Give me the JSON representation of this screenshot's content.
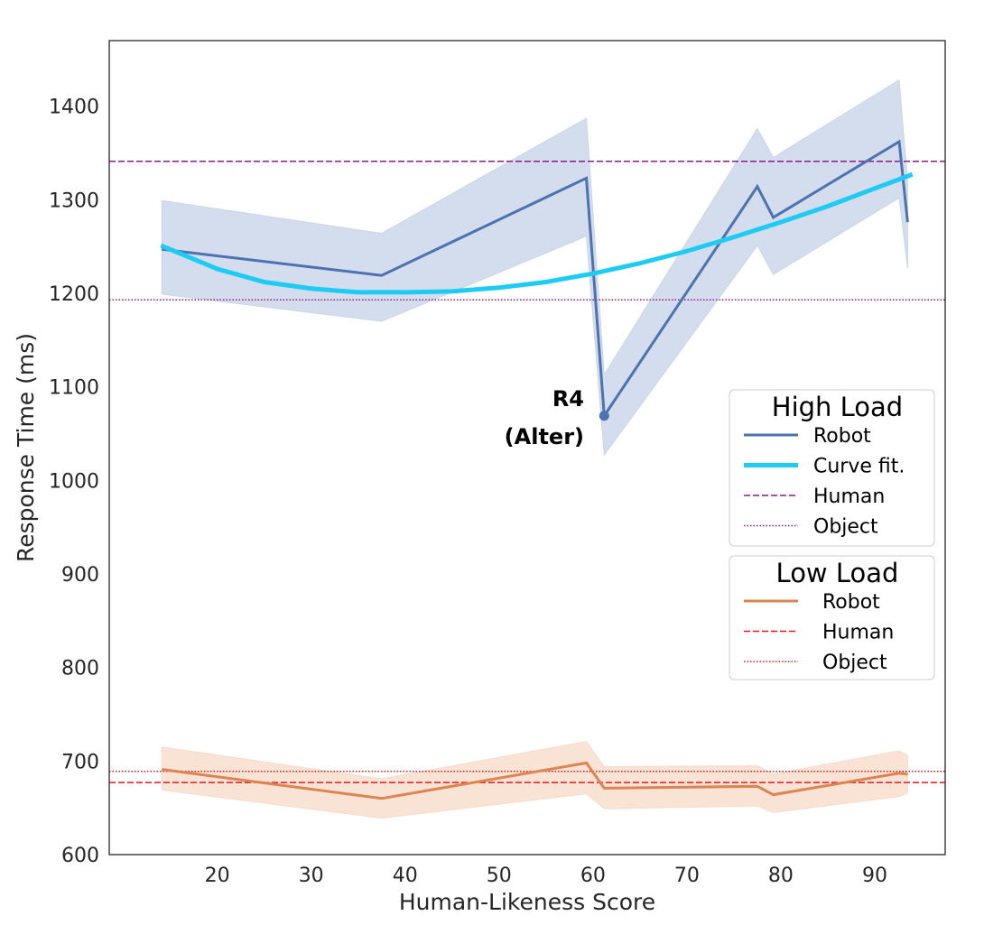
{
  "chart_data": {
    "type": "line",
    "xlabel": "Human-Likeness Score",
    "ylabel": "Response Time (ms)",
    "xlim": [
      8.5,
      97.5
    ],
    "ylim": [
      600,
      1470
    ],
    "xticks": [
      20,
      30,
      40,
      50,
      60,
      70,
      80,
      90
    ],
    "yticks": [
      600,
      700,
      800,
      900,
      1000,
      1100,
      1200,
      1300,
      1400
    ],
    "grid": false,
    "colors": {
      "high_robot": "#4c72b0",
      "high_band": "#c9d5e8",
      "curve_fit": "#1ecbf2",
      "high_ref": "#8b1a8b",
      "low_robot": "#dd8452",
      "low_band": "#f6dccb",
      "low_ref": "#e8141c"
    },
    "high_load": {
      "robot": {
        "name": "Robot",
        "x": [
          14.1,
          37.5,
          59.3,
          61.2,
          77.5,
          79.2,
          92.6,
          93.5
        ],
        "y": [
          1247,
          1219,
          1323,
          1069,
          1314,
          1281,
          1362,
          1276
        ],
        "ci_lower": [
          1199,
          1170,
          1261,
          1027,
          1251,
          1220,
          1302,
          1227
        ],
        "ci_upper": [
          1299,
          1264,
          1387,
          1113,
          1376,
          1345,
          1428,
          1319
        ]
      },
      "curve_fit": {
        "name": "Curve fit.",
        "x": [
          14,
          20,
          25,
          30,
          35,
          40,
          45,
          50,
          55,
          60,
          65,
          70,
          75,
          80,
          85,
          90,
          94
        ],
        "y": [
          1251,
          1226,
          1212,
          1205,
          1201,
          1201,
          1202,
          1206,
          1212,
          1221,
          1232,
          1245,
          1260,
          1276,
          1293,
          1312,
          1327
        ]
      },
      "human": {
        "name": "Human",
        "value": 1341
      },
      "object": {
        "name": "Object",
        "value": 1193
      }
    },
    "low_load": {
      "robot": {
        "name": "Robot",
        "x": [
          14.1,
          37.5,
          59.3,
          61.2,
          77.5,
          79.2,
          92.6,
          93.5
        ],
        "y": [
          691,
          660,
          698,
          671,
          673,
          664,
          687,
          686
        ],
        "ci_lower": [
          669,
          639,
          665,
          649,
          652,
          645,
          662,
          666
        ],
        "ci_upper": [
          715,
          681,
          721,
          694,
          695,
          686,
          711,
          706
        ]
      },
      "human": {
        "name": "Human",
        "value": 677
      },
      "object": {
        "name": "Object",
        "value": 689
      }
    },
    "annotation": {
      "label_line1": "R4",
      "label_line2": "(Alter)",
      "x": 61.2,
      "y": 1069
    },
    "legends": [
      {
        "title": "High Load",
        "placement": "center-right",
        "entries": [
          {
            "label": "Robot",
            "style": "solid",
            "color_key": "high_robot"
          },
          {
            "label": "Curve fit.",
            "style": "solid-thick",
            "color_key": "curve_fit"
          },
          {
            "label": "Human",
            "style": "dashed",
            "color_key": "high_ref"
          },
          {
            "label": "Object",
            "style": "dotted",
            "color_key": "high_ref"
          }
        ]
      },
      {
        "title": "Low Load",
        "placement": "center-right",
        "entries": [
          {
            "label": "Robot",
            "style": "solid",
            "color_key": "low_robot"
          },
          {
            "label": "Human",
            "style": "dashed",
            "color_key": "low_ref"
          },
          {
            "label": "Object",
            "style": "dotted",
            "color_key": "low_ref"
          }
        ]
      }
    ]
  }
}
